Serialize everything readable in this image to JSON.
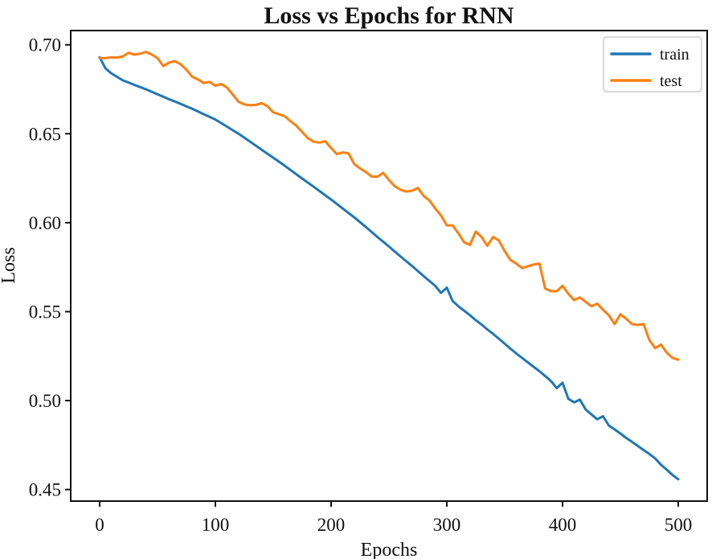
{
  "figure": {
    "background": "#ffffff",
    "spine_color": "#111111"
  },
  "chart_data": {
    "type": "line",
    "title": "Loss vs Epochs for RNN",
    "xlabel": "Epochs",
    "ylabel": "Loss",
    "xlim": [
      -25,
      525
    ],
    "ylim": [
      0.4435,
      0.708
    ],
    "xticks": [
      0,
      100,
      200,
      300,
      400,
      500
    ],
    "xtick_labels": [
      "0",
      "100",
      "200",
      "300",
      "400",
      "500"
    ],
    "yticks": [
      0.45,
      0.5,
      0.55,
      0.6,
      0.65,
      0.7
    ],
    "ytick_labels": [
      "0.45",
      "0.50",
      "0.55",
      "0.60",
      "0.65",
      "0.70"
    ],
    "grid": false,
    "legend": {
      "position": "upper right",
      "entries": [
        {
          "label": "train",
          "color": "#1f77b4"
        },
        {
          "label": "test",
          "color": "#ff7f0e"
        }
      ]
    },
    "x": [
      0,
      5,
      10,
      15,
      20,
      25,
      30,
      35,
      40,
      45,
      50,
      55,
      60,
      65,
      70,
      75,
      80,
      85,
      90,
      95,
      100,
      105,
      110,
      115,
      120,
      125,
      130,
      135,
      140,
      145,
      150,
      155,
      160,
      165,
      170,
      175,
      180,
      185,
      190,
      195,
      200,
      205,
      210,
      215,
      220,
      225,
      230,
      235,
      240,
      245,
      250,
      255,
      260,
      265,
      270,
      275,
      280,
      285,
      290,
      295,
      300,
      305,
      310,
      315,
      320,
      325,
      330,
      335,
      340,
      345,
      350,
      355,
      360,
      365,
      370,
      375,
      380,
      385,
      390,
      395,
      400,
      405,
      410,
      415,
      420,
      425,
      430,
      435,
      440,
      445,
      450,
      455,
      460,
      465,
      470,
      475,
      480,
      485,
      490,
      495,
      500
    ],
    "series": [
      {
        "name": "train",
        "color": "#1f77b4",
        "values": [
          0.693,
          0.6868,
          0.684,
          0.682,
          0.68,
          0.6788,
          0.6775,
          0.6762,
          0.675,
          0.6736,
          0.6722,
          0.6708,
          0.6694,
          0.6681,
          0.6668,
          0.6654,
          0.664,
          0.6625,
          0.661,
          0.6595,
          0.658,
          0.656,
          0.654,
          0.652,
          0.65,
          0.6478,
          0.6455,
          0.6433,
          0.641,
          0.6388,
          0.6365,
          0.6343,
          0.632,
          0.6296,
          0.6272,
          0.6248,
          0.6225,
          0.6202,
          0.6178,
          0.6154,
          0.613,
          0.6105,
          0.608,
          0.6055,
          0.603,
          0.6003,
          0.5976,
          0.5948,
          0.592,
          0.5893,
          0.5866,
          0.5838,
          0.581,
          0.5783,
          0.5756,
          0.5728,
          0.57,
          0.5672,
          0.5645,
          0.5605,
          0.5635,
          0.556,
          0.553,
          0.5505,
          0.548,
          0.5452,
          0.5428,
          0.54,
          0.5375,
          0.5348,
          0.532,
          0.5292,
          0.5265,
          0.524,
          0.5215,
          0.519,
          0.5165,
          0.5138,
          0.511,
          0.507,
          0.51,
          0.501,
          0.499,
          0.5005,
          0.495,
          0.4922,
          0.4895,
          0.4912,
          0.486,
          0.4838,
          0.4815,
          0.479,
          0.4768,
          0.4745,
          0.4722,
          0.47,
          0.4675,
          0.464,
          0.4612,
          0.4582,
          0.4558
        ]
      },
      {
        "name": "test",
        "color": "#ff7f0e",
        "values": [
          0.6925,
          0.6925,
          0.693,
          0.6928,
          0.6935,
          0.6955,
          0.6945,
          0.695,
          0.696,
          0.6945,
          0.6925,
          0.688,
          0.69,
          0.6908,
          0.689,
          0.686,
          0.682,
          0.6805,
          0.6785,
          0.6792,
          0.677,
          0.678,
          0.676,
          0.672,
          0.668,
          0.6665,
          0.666,
          0.6662,
          0.6672,
          0.6655,
          0.662,
          0.661,
          0.6598,
          0.657,
          0.6545,
          0.651,
          0.6475,
          0.6455,
          0.645,
          0.6458,
          0.642,
          0.6385,
          0.6395,
          0.639,
          0.633,
          0.6305,
          0.6285,
          0.626,
          0.6258,
          0.628,
          0.624,
          0.6205,
          0.6185,
          0.6175,
          0.618,
          0.6195,
          0.615,
          0.6125,
          0.608,
          0.604,
          0.5985,
          0.5985,
          0.594,
          0.589,
          0.5875,
          0.595,
          0.592,
          0.587,
          0.592,
          0.59,
          0.584,
          0.579,
          0.577,
          0.5745,
          0.5755,
          0.5765,
          0.577,
          0.563,
          0.5615,
          0.5615,
          0.5645,
          0.56,
          0.5565,
          0.558,
          0.5555,
          0.553,
          0.5545,
          0.551,
          0.548,
          0.543,
          0.5485,
          0.546,
          0.543,
          0.5425,
          0.543,
          0.534,
          0.5295,
          0.5315,
          0.527,
          0.524,
          0.523
        ]
      }
    ]
  }
}
